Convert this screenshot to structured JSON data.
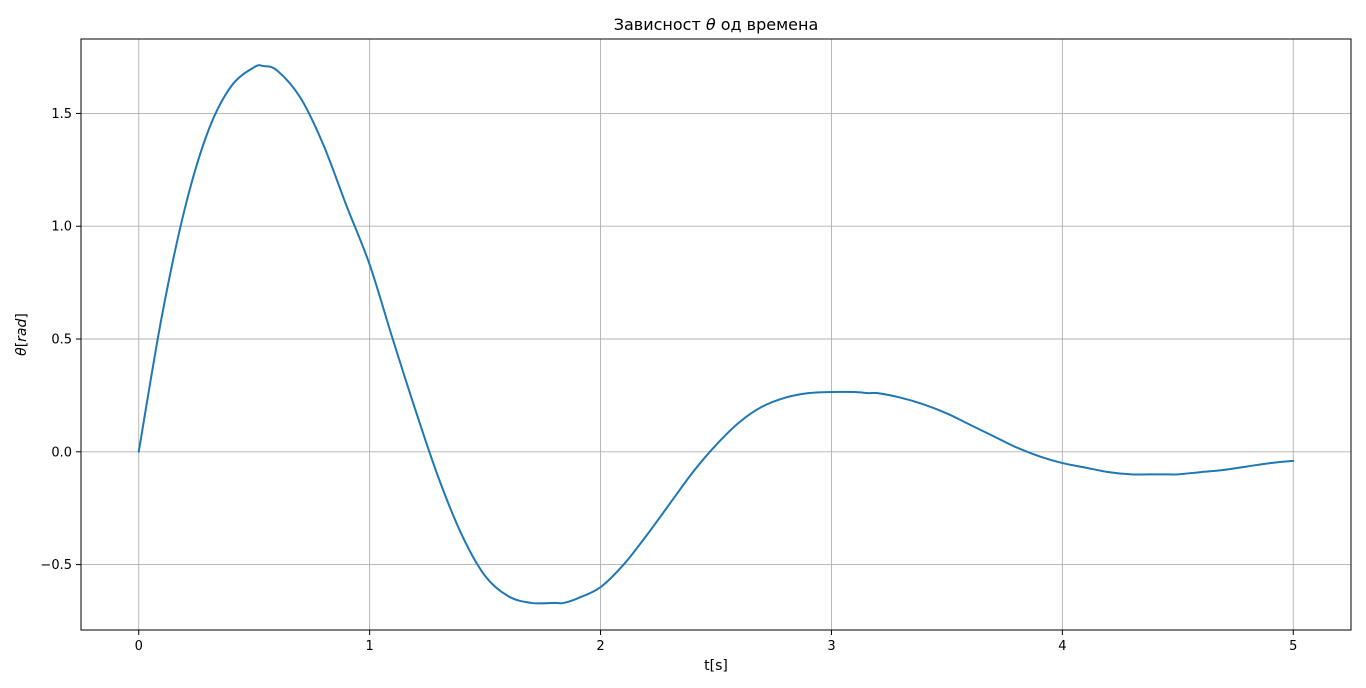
{
  "chart_data": {
    "type": "line",
    "title_parts": [
      "Зависност ",
      "θ",
      " од времена"
    ],
    "xlabel": "t[s]",
    "ylabel_parts": [
      "θ",
      "[",
      "rad",
      "]"
    ],
    "xlim": [
      -0.25,
      5.25
    ],
    "ylim": [
      -0.79,
      1.83
    ],
    "xticks": [
      0,
      1,
      2,
      3,
      4,
      5
    ],
    "xtick_labels": [
      "0",
      "1",
      "2",
      "3",
      "4",
      "5"
    ],
    "yticks": [
      -0.5,
      0.0,
      0.5,
      1.0,
      1.5
    ],
    "ytick_labels": [
      "−0.5",
      "0.0",
      "0.5",
      "1.0",
      "1.5"
    ],
    "grid": true,
    "series": [
      {
        "color": "#1f77b4",
        "x": [
          0,
          0.1,
          0.2,
          0.3,
          0.4,
          0.5,
          0.54,
          0.6,
          0.7,
          0.8,
          0.9,
          1.0,
          1.1,
          1.2,
          1.3,
          1.4,
          1.5,
          1.6,
          1.7,
          1.8,
          1.84,
          1.9,
          2.0,
          2.1,
          2.2,
          2.3,
          2.4,
          2.5,
          2.6,
          2.7,
          2.8,
          2.9,
          3.0,
          3.1,
          3.16,
          3.2,
          3.3,
          3.4,
          3.5,
          3.6,
          3.7,
          3.8,
          3.9,
          4.0,
          4.1,
          4.2,
          4.3,
          4.4,
          4.46,
          4.5,
          4.6,
          4.7,
          4.8,
          4.9,
          5.0
        ],
        "y": [
          0.0,
          0.6,
          1.08,
          1.42,
          1.62,
          1.705,
          1.71,
          1.69,
          1.57,
          1.36,
          1.09,
          0.83,
          0.5,
          0.18,
          -0.12,
          -0.37,
          -0.55,
          -0.64,
          -0.67,
          -0.67,
          -0.67,
          -0.65,
          -0.6,
          -0.5,
          -0.37,
          -0.23,
          -0.09,
          0.03,
          0.13,
          0.2,
          0.24,
          0.26,
          0.265,
          0.265,
          0.26,
          0.26,
          0.24,
          0.21,
          0.17,
          0.12,
          0.07,
          0.02,
          -0.02,
          -0.05,
          -0.07,
          -0.09,
          -0.1,
          -0.1,
          -0.1,
          -0.1,
          -0.09,
          -0.08,
          -0.065,
          -0.05,
          -0.04
        ]
      }
    ]
  }
}
